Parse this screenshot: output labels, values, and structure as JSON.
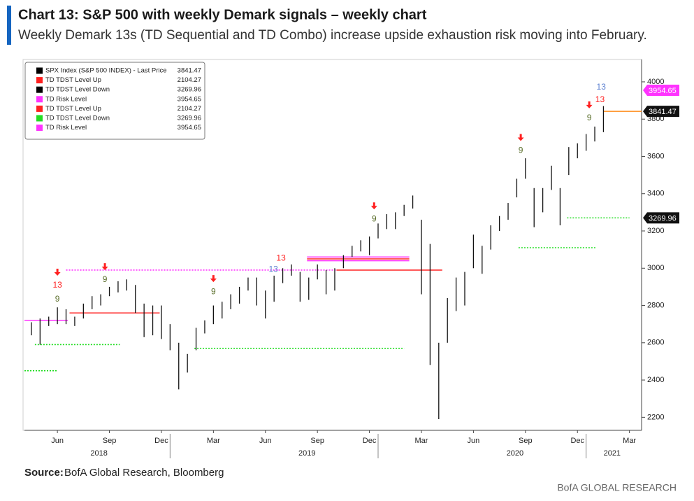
{
  "chart_data": {
    "type": "range",
    "title": "Chart 13: S&P 500 with weekly Demark signals – weekly chart",
    "subtitle": "Weekly Demark 13s (TD Sequential and TD Combo) increase upside exhaustion risk moving into February.",
    "color": "#111111",
    "x": [
      3.5,
      4.0,
      4.5,
      5.0,
      5.5,
      6.0,
      6.5,
      7.0,
      7.5,
      8.0,
      8.5,
      9.0,
      9.5,
      10.0,
      10.5,
      11.0,
      11.5,
      12.0,
      12.5,
      13.0,
      13.5,
      14.0,
      14.5,
      15.0,
      15.5,
      16.0,
      16.5,
      17.0,
      17.5,
      18.0,
      18.5,
      19.0,
      19.5,
      20.0,
      20.5,
      21.0,
      21.5,
      22.0,
      22.5,
      23.0,
      23.5,
      24.0,
      24.5,
      25.0,
      25.5,
      26.0,
      26.5,
      27.0,
      27.5,
      28.0,
      28.5,
      29.0,
      29.5,
      30.0,
      30.5,
      31.0,
      31.5,
      32.0,
      32.5,
      33.0,
      33.5,
      34.0,
      34.5,
      35.0,
      35.5,
      36.0,
      36.5
    ],
    "high": [
      2710,
      2730,
      2740,
      2790,
      2780,
      2740,
      2810,
      2850,
      2860,
      2900,
      2930,
      2940,
      2910,
      2810,
      2800,
      2800,
      2700,
      2600,
      2540,
      2680,
      2720,
      2800,
      2820,
      2860,
      2900,
      2950,
      2950,
      2880,
      2960,
      3000,
      3020,
      2980,
      2950,
      3020,
      2990,
      3000,
      3070,
      3120,
      3150,
      3170,
      3240,
      3290,
      3300,
      3340,
      3390,
      3260,
      3130,
      2600,
      2840,
      2950,
      2980,
      3180,
      3120,
      3230,
      3280,
      3350,
      3480,
      3590,
      3430,
      3430,
      3550,
      3430,
      3650,
      3670,
      3720,
      3760,
      3870
    ],
    "low": [
      2640,
      2590,
      2690,
      2700,
      2700,
      2690,
      2730,
      2780,
      2800,
      2850,
      2870,
      2880,
      2760,
      2630,
      2640,
      2620,
      2560,
      2350,
      2440,
      2560,
      2650,
      2700,
      2730,
      2780,
      2810,
      2880,
      2800,
      2730,
      2820,
      2920,
      2960,
      2820,
      2830,
      2940,
      2860,
      2880,
      3000,
      3060,
      3090,
      3070,
      3160,
      3210,
      3210,
      3280,
      3320,
      2860,
      2480,
      2190,
      2600,
      2770,
      2800,
      3000,
      2970,
      3100,
      3200,
      3260,
      3380,
      3480,
      3220,
      3300,
      3420,
      3230,
      3500,
      3590,
      3630,
      3680,
      3730
    ],
    "xlim": [
      3.1,
      38.7
    ],
    "ylim": [
      2130,
      4120
    ],
    "yticks": [
      2200,
      2400,
      2600,
      2800,
      3000,
      3200,
      3400,
      3600,
      3800,
      4000
    ],
    "xticks": [
      {
        "value": 5,
        "label": "Jun"
      },
      {
        "value": 8,
        "label": "Sep"
      },
      {
        "value": 11,
        "label": "Dec"
      },
      {
        "value": 14,
        "label": "Mar"
      },
      {
        "value": 17,
        "label": "Jun"
      },
      {
        "value": 20,
        "label": "Sep"
      },
      {
        "value": 23,
        "label": "Dec"
      },
      {
        "value": 26,
        "label": "Mar"
      },
      {
        "value": 29,
        "label": "Jun"
      },
      {
        "value": 32,
        "label": "Sep"
      },
      {
        "value": 35,
        "label": "Dec"
      },
      {
        "value": 38,
        "label": "Mar"
      }
    ],
    "year_labels": [
      {
        "value": 7.4,
        "label": "2018"
      },
      {
        "value": 19.4,
        "label": "2019"
      },
      {
        "value": 31.4,
        "label": "2020"
      },
      {
        "value": 37.0,
        "label": "2021"
      }
    ],
    "year_dividers": [
      11.5,
      23.5,
      35.5
    ],
    "legend": [
      {
        "name": "SPX Index (S&P 500 INDEX) - Last Price",
        "value": 3841.47,
        "color": "#000000"
      },
      {
        "name": "TD TDST Level Up",
        "value": 2104.27,
        "color": "#ff2020"
      },
      {
        "name": "TD TDST Level Down",
        "value": 3269.96,
        "color": "#000000"
      },
      {
        "name": "TD Risk Level",
        "value": 3954.65,
        "color": "#ff33ff"
      },
      {
        "name": "TD TDST Level Up",
        "value": 2104.27,
        "color": "#ff2020"
      },
      {
        "name": "TD TDST Level Down",
        "value": 3269.96,
        "color": "#22dd22"
      },
      {
        "name": "TD Risk Level",
        "value": 3954.65,
        "color": "#ff33ff"
      }
    ],
    "levels": [
      {
        "x0": 3.1,
        "x1": 5.6,
        "y": 2720,
        "color": "#ff33ff",
        "style": "solid"
      },
      {
        "x0": 5.7,
        "x1": 10.9,
        "y": 2760,
        "color": "#ff2020",
        "style": "solid"
      },
      {
        "x0": 3.7,
        "x1": 8.6,
        "y": 2590,
        "color": "#22dd22",
        "style": "dotted"
      },
      {
        "x0": 3.1,
        "x1": 5.0,
        "y": 2450,
        "color": "#22dd22",
        "style": "dotted"
      },
      {
        "x0": 5.5,
        "x1": 21.1,
        "y": 2990,
        "color": "#ff33ff",
        "style": "dotted"
      },
      {
        "x0": 12.9,
        "x1": 25.0,
        "y": 2570,
        "color": "#22dd22",
        "style": "dotted"
      },
      {
        "x0": 19.4,
        "x1": 25.3,
        "y": 3060,
        "color": "#ff33ff",
        "style": "solid"
      },
      {
        "x0": 19.4,
        "x1": 25.3,
        "y": 3050,
        "color": "#ff2020",
        "style": "solid"
      },
      {
        "x0": 19.4,
        "x1": 25.3,
        "y": 3040,
        "color": "#ff33ff",
        "style": "solid"
      },
      {
        "x0": 21.1,
        "x1": 27.2,
        "y": 2990,
        "color": "#ff2020",
        "style": "solid"
      },
      {
        "x0": 31.6,
        "x1": 36.1,
        "y": 3110,
        "color": "#22dd22",
        "style": "dotted"
      },
      {
        "x0": 34.4,
        "x1": 38.0,
        "y": 3270,
        "color": "#22dd22",
        "style": "dotted"
      },
      {
        "x0": 36.5,
        "x1": 38.7,
        "y": 3841.47,
        "color": "#ff8c1a",
        "style": "solid"
      }
    ],
    "signals": [
      {
        "x": 5.0,
        "y": 2907,
        "label": "13",
        "color": "#ff2020",
        "arrow": true
      },
      {
        "x": 5.0,
        "y": 2832,
        "label": "9",
        "color": "#5a6e2a",
        "arrow": false
      },
      {
        "x": 7.74,
        "y": 2937,
        "label": "9",
        "color": "#5a6e2a",
        "arrow": true
      },
      {
        "x": 14.0,
        "y": 2873,
        "label": "9",
        "color": "#5a6e2a",
        "arrow": true
      },
      {
        "x": 17.46,
        "y": 2993,
        "label": "13",
        "color": "#5a7fd0",
        "arrow": false
      },
      {
        "x": 17.9,
        "y": 3053,
        "label": "13",
        "color": "#ff2020",
        "arrow": false
      },
      {
        "x": 23.27,
        "y": 3263,
        "label": "9",
        "color": "#5a6e2a",
        "arrow": true
      },
      {
        "x": 31.73,
        "y": 3630,
        "label": "9",
        "color": "#5a6e2a",
        "arrow": true
      },
      {
        "x": 35.68,
        "y": 3805,
        "label": "9",
        "color": "#5a6e2a",
        "arrow": true
      },
      {
        "x": 36.3,
        "y": 3903,
        "label": "13",
        "color": "#ff2020",
        "arrow": false
      },
      {
        "x": 36.37,
        "y": 3970,
        "label": "13",
        "color": "#5a7fd0",
        "arrow": false
      }
    ],
    "price_tags": [
      {
        "value": 3954.65,
        "color": "#ff33ff"
      },
      {
        "value": 3841.47,
        "color": "#111111"
      },
      {
        "value": 3269.96,
        "color": "#111111"
      }
    ],
    "source_label": "Source:",
    "source": "BofA Global Research, Bloomberg",
    "footer": "BofA GLOBAL RESEARCH"
  }
}
